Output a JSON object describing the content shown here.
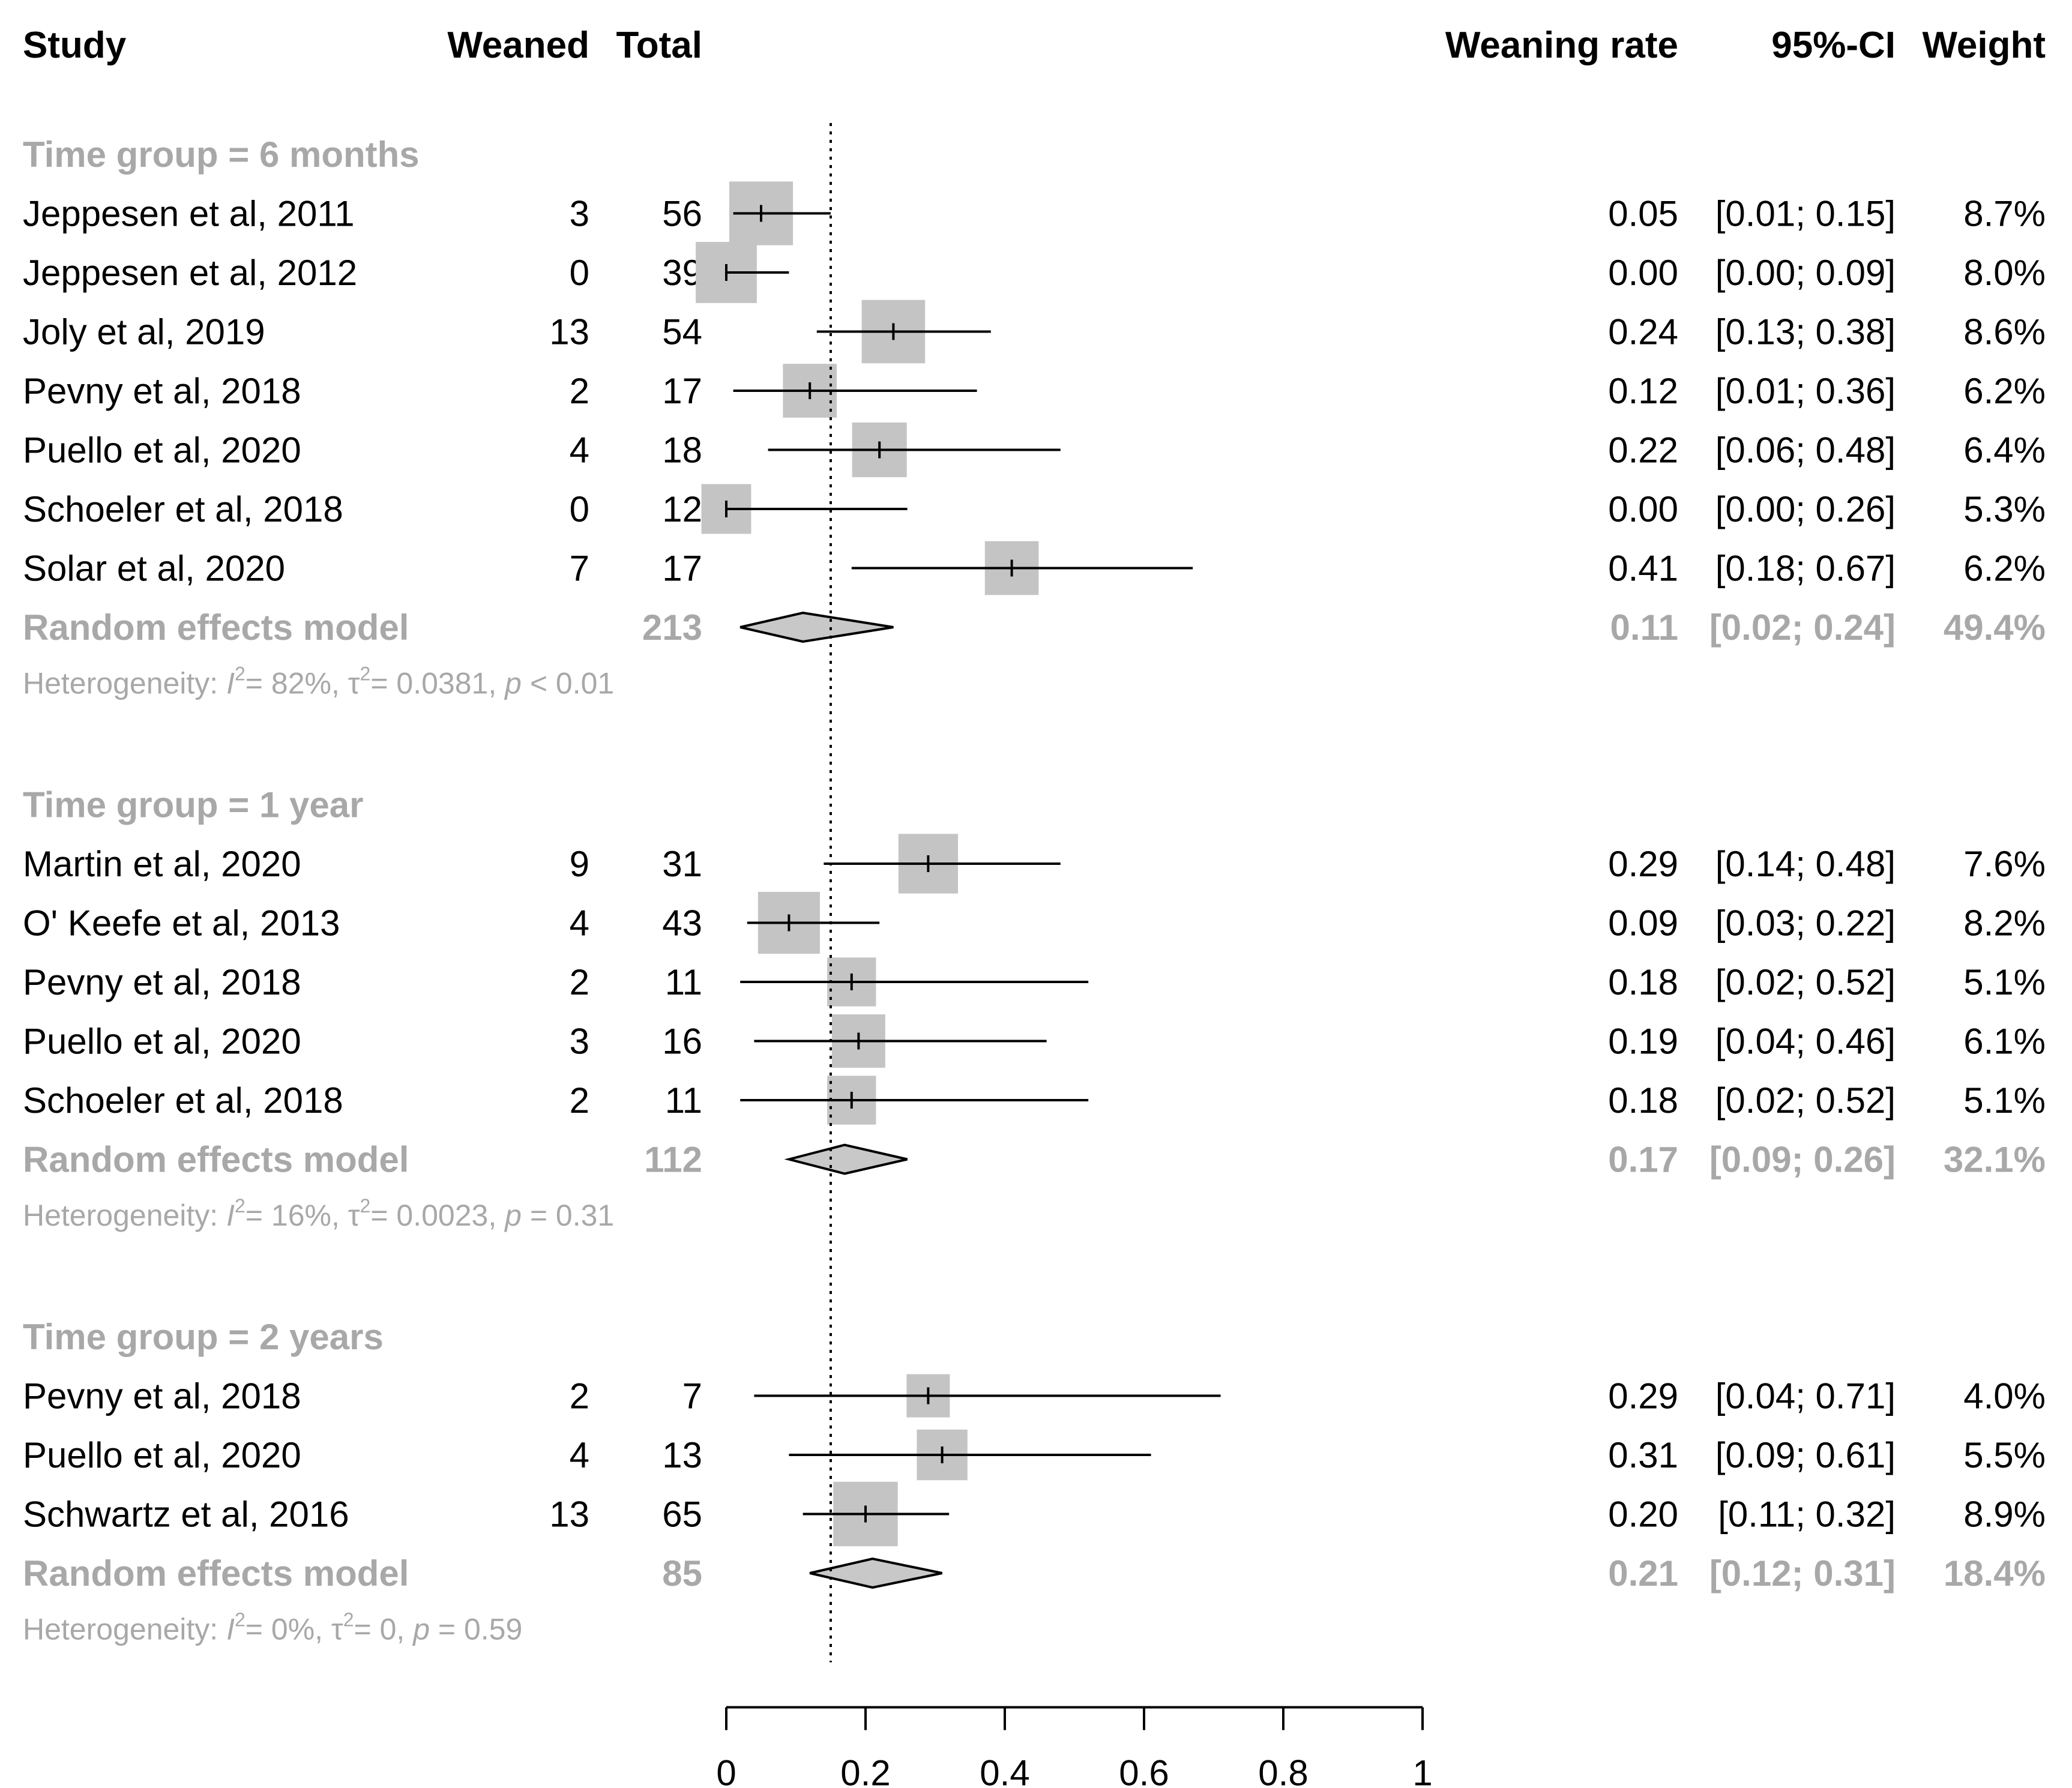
{
  "headers": {
    "study": "Study",
    "weaned": "Weaned",
    "total": "Total",
    "rate": "Weaning rate",
    "ci": "95%-CI",
    "weight": "Weight"
  },
  "colors": {
    "text": "#000000",
    "group_text": "#a8a8a8",
    "box_fill": "#c4c4c4",
    "diamond_fill": "#c8c8c8",
    "line": "#000000"
  },
  "chart_data": {
    "type": "forest",
    "xlim": [
      0,
      1
    ],
    "x_ticks": [
      "0",
      "0.2",
      "0.4",
      "0.6",
      "0.8",
      "1"
    ],
    "x_tick_values": [
      0,
      0.2,
      0.4,
      0.6,
      0.8,
      1
    ],
    "overall_reference": 0.15,
    "groups": [
      {
        "label": "Time group = 6 months",
        "studies": [
          {
            "study": "Jeppesen et al, 2011",
            "weaned": "3",
            "total": "56",
            "rate": 0.05,
            "lo": 0.01,
            "hi": 0.15,
            "rate_txt": "0.05",
            "ci_txt": "[0.01; 0.15]",
            "weight_txt": "8.7%",
            "weight": 8.7
          },
          {
            "study": "Jeppesen et al, 2012",
            "weaned": "0",
            "total": "39",
            "rate": 0.0,
            "lo": 0.0,
            "hi": 0.09,
            "rate_txt": "0.00",
            "ci_txt": "[0.00; 0.09]",
            "weight_txt": "8.0%",
            "weight": 8.0
          },
          {
            "study": "Joly et al, 2019",
            "weaned": "13",
            "total": "54",
            "rate": 0.24,
            "lo": 0.13,
            "hi": 0.38,
            "rate_txt": "0.24",
            "ci_txt": "[0.13; 0.38]",
            "weight_txt": "8.6%",
            "weight": 8.6
          },
          {
            "study": "Pevny et al, 2018",
            "weaned": "2",
            "total": "17",
            "rate": 0.12,
            "lo": 0.01,
            "hi": 0.36,
            "rate_txt": "0.12",
            "ci_txt": "[0.01; 0.36]",
            "weight_txt": "6.2%",
            "weight": 6.2
          },
          {
            "study": "Puello et al, 2020",
            "weaned": "4",
            "total": "18",
            "rate": 0.22,
            "lo": 0.06,
            "hi": 0.48,
            "rate_txt": "0.22",
            "ci_txt": "[0.06; 0.48]",
            "weight_txt": "6.4%",
            "weight": 6.4
          },
          {
            "study": "Schoeler et al, 2018",
            "weaned": "0",
            "total": "12",
            "rate": 0.0,
            "lo": 0.0,
            "hi": 0.26,
            "rate_txt": "0.00",
            "ci_txt": "[0.00; 0.26]",
            "weight_txt": "5.3%",
            "weight": 5.3
          },
          {
            "study": "Solar et al, 2020",
            "weaned": "7",
            "total": "17",
            "rate": 0.41,
            "lo": 0.18,
            "hi": 0.67,
            "rate_txt": "0.41",
            "ci_txt": "[0.18; 0.67]",
            "weight_txt": "6.2%",
            "weight": 6.2
          }
        ],
        "model": {
          "label": "Random effects model",
          "total": "213",
          "rate": 0.11,
          "lo": 0.02,
          "hi": 0.24,
          "rate_txt": "0.11",
          "ci_txt": "[0.02; 0.24]",
          "weight_txt": "49.4%"
        },
        "heterogeneity": {
          "prefix": "Heterogeneity: ",
          "i2": "= 82%, ",
          "tau2": "= 0.0381, ",
          "p": "< 0.01"
        }
      },
      {
        "label": "Time group = 1 year",
        "studies": [
          {
            "study": "Martin et al, 2020",
            "weaned": "9",
            "total": "31",
            "rate": 0.29,
            "lo": 0.14,
            "hi": 0.48,
            "rate_txt": "0.29",
            "ci_txt": "[0.14; 0.48]",
            "weight_txt": "7.6%",
            "weight": 7.6
          },
          {
            "study": "O' Keefe et al, 2013",
            "weaned": "4",
            "total": "43",
            "rate": 0.09,
            "lo": 0.03,
            "hi": 0.22,
            "rate_txt": "0.09",
            "ci_txt": "[0.03; 0.22]",
            "weight_txt": "8.2%",
            "weight": 8.2
          },
          {
            "study": "Pevny et al, 2018",
            "weaned": "2",
            "total": "11",
            "rate": 0.18,
            "lo": 0.02,
            "hi": 0.52,
            "rate_txt": "0.18",
            "ci_txt": "[0.02; 0.52]",
            "weight_txt": "5.1%",
            "weight": 5.1
          },
          {
            "study": "Puello et al, 2020",
            "weaned": "3",
            "total": "16",
            "rate": 0.19,
            "lo": 0.04,
            "hi": 0.46,
            "rate_txt": "0.19",
            "ci_txt": "[0.04; 0.46]",
            "weight_txt": "6.1%",
            "weight": 6.1
          },
          {
            "study": "Schoeler et al, 2018",
            "weaned": "2",
            "total": "11",
            "rate": 0.18,
            "lo": 0.02,
            "hi": 0.52,
            "rate_txt": "0.18",
            "ci_txt": "[0.02; 0.52]",
            "weight_txt": "5.1%",
            "weight": 5.1
          }
        ],
        "model": {
          "label": "Random effects model",
          "total": "112",
          "rate": 0.17,
          "lo": 0.09,
          "hi": 0.26,
          "rate_txt": "0.17",
          "ci_txt": "[0.09; 0.26]",
          "weight_txt": "32.1%"
        },
        "heterogeneity": {
          "prefix": "Heterogeneity: ",
          "i2": "= 16%, ",
          "tau2": "= 0.0023, ",
          "p": "= 0.31"
        }
      },
      {
        "label": "Time group = 2 years",
        "studies": [
          {
            "study": "Pevny et al, 2018",
            "weaned": "2",
            "total": "7",
            "rate": 0.29,
            "lo": 0.04,
            "hi": 0.71,
            "rate_txt": "0.29",
            "ci_txt": "[0.04; 0.71]",
            "weight_txt": "4.0%",
            "weight": 4.0
          },
          {
            "study": "Puello et al, 2020",
            "weaned": "4",
            "total": "13",
            "rate": 0.31,
            "lo": 0.09,
            "hi": 0.61,
            "rate_txt": "0.31",
            "ci_txt": "[0.09; 0.61]",
            "weight_txt": "5.5%",
            "weight": 5.5
          },
          {
            "study": "Schwartz et al, 2016",
            "weaned": "13",
            "total": "65",
            "rate": 0.2,
            "lo": 0.11,
            "hi": 0.32,
            "rate_txt": "0.20",
            "ci_txt": "[0.11; 0.32]",
            "weight_txt": "8.9%",
            "weight": 8.9
          }
        ],
        "model": {
          "label": "Random effects model",
          "total": "85",
          "rate": 0.21,
          "lo": 0.12,
          "hi": 0.31,
          "rate_txt": "0.21",
          "ci_txt": "[0.12; 0.31]",
          "weight_txt": "18.4%"
        },
        "heterogeneity": {
          "prefix": "Heterogeneity: ",
          "i2": "= 0%, ",
          "tau2": "= 0, ",
          "p": "= 0.59"
        }
      }
    ]
  }
}
